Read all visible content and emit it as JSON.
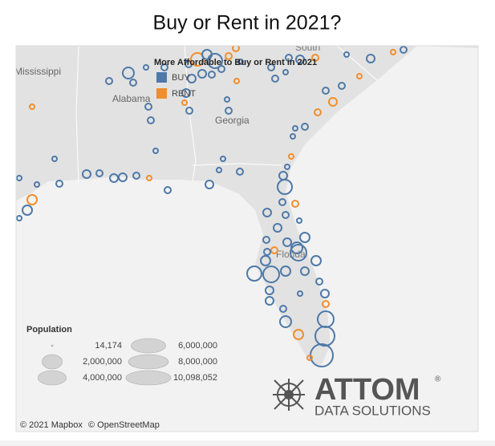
{
  "title": "Buy or Rent in 2021?",
  "map": {
    "place_labels": [
      "Mississippi",
      "Alabama",
      "Georgia",
      "Florida",
      "South"
    ],
    "attribution": [
      "© 2021 Mapbox",
      "© OpenStreetMap"
    ]
  },
  "color_legend": {
    "title": "More Affordable to Buy or Rent in 2021",
    "items": [
      {
        "label": "BUY",
        "color": "#4e79a7"
      },
      {
        "label": "RENT",
        "color": "#f28e2b"
      }
    ]
  },
  "size_legend": {
    "title": "Population",
    "sizes": [
      {
        "value": 14174,
        "label": "14,174"
      },
      {
        "value": 2000000,
        "label": "2,000,000"
      },
      {
        "value": 4000000,
        "label": "4,000,000"
      },
      {
        "value": 6000000,
        "label": "6,000,000"
      },
      {
        "value": 8000000,
        "label": "8,000,000"
      },
      {
        "value": 10098052,
        "label": "10,098,052"
      }
    ]
  },
  "logo": {
    "name": "ATTOM",
    "tagline": "DATA SOLUTIONS",
    "mark": "®"
  }
}
